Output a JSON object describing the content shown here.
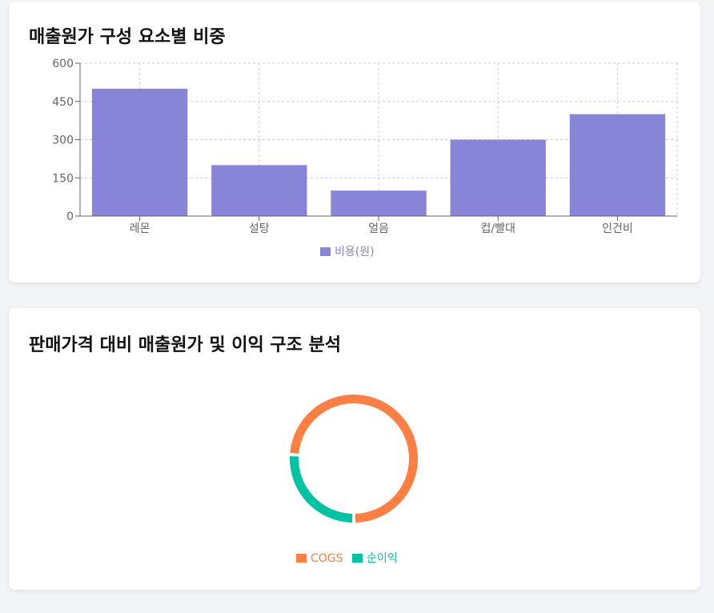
{
  "cost_card": {
    "title": "매출원가 구성 요소별 비중"
  },
  "profit_card": {
    "title": "판매가격 대비 매출원가 및 이익 구조 분석"
  },
  "chart_data": [
    {
      "type": "bar",
      "title": "매출원가 구성 요소별 비중",
      "categories": [
        "레몬",
        "설탕",
        "얼음",
        "컵/빨대",
        "인건비"
      ],
      "series": [
        {
          "name": "비용(원)",
          "values": [
            500,
            200,
            100,
            300,
            400
          ],
          "color": "#8884d8"
        }
      ],
      "ylim": [
        0,
        600
      ],
      "yticks": [
        "0",
        "150",
        "300",
        "450",
        "600"
      ],
      "grid": true,
      "legend": "bottom"
    },
    {
      "type": "pie",
      "title": "판매가격 대비 매출원가 및 이익 구조 분석",
      "slices": [
        {
          "name": "COGS",
          "value": 74,
          "color": "#ff7f42"
        },
        {
          "name": "순이익",
          "value": 26,
          "color": "#00c49f"
        }
      ],
      "donut": true,
      "legend": "bottom"
    }
  ]
}
